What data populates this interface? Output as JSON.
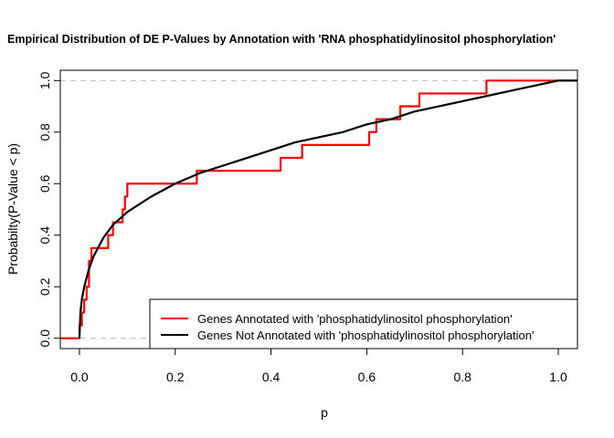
{
  "chart_data": {
    "type": "line",
    "title": "Empirical Distribution of DE P-Values by Annotation with 'RNA phosphatidylinositol phosphorylation'",
    "xlabel": "p",
    "ylabel": "Probabilty(P-Value < p)",
    "xlim": [
      -0.04,
      1.04
    ],
    "ylim": [
      -0.04,
      1.04
    ],
    "x_ticks": [
      "0.0",
      "0.2",
      "0.4",
      "0.6",
      "0.8",
      "1.0"
    ],
    "y_ticks": [
      "0.0",
      "0.2",
      "0.4",
      "0.6",
      "0.8",
      "1.0"
    ],
    "reference_lines": [
      0,
      1
    ],
    "legend_position": "bottom-right",
    "series": [
      {
        "name": "Genes Annotated with 'phosphatidylinositol phosphorylation'",
        "color": "#ff0000",
        "kind": "step",
        "x": [
          -0.04,
          0.0,
          0.005,
          0.01,
          0.015,
          0.02,
          0.025,
          0.06,
          0.07,
          0.09,
          0.095,
          0.1,
          0.245,
          0.42,
          0.465,
          0.605,
          0.62,
          0.67,
          0.69,
          0.71,
          0.85,
          1.04
        ],
        "y": [
          0.0,
          0.05,
          0.1,
          0.15,
          0.2,
          0.3,
          0.35,
          0.4,
          0.45,
          0.5,
          0.55,
          0.6,
          0.65,
          0.7,
          0.75,
          0.8,
          0.85,
          0.9,
          0.9,
          0.95,
          1.0,
          1.0
        ]
      },
      {
        "name": "Genes Not Annotated with 'phosphatidylinositol phosphorylation'",
        "color": "#000000",
        "kind": "curve",
        "x": [
          0.0,
          0.002,
          0.005,
          0.01,
          0.02,
          0.03,
          0.05,
          0.07,
          0.1,
          0.15,
          0.2,
          0.25,
          0.3,
          0.35,
          0.4,
          0.45,
          0.5,
          0.55,
          0.6,
          0.65,
          0.7,
          0.75,
          0.8,
          0.85,
          0.9,
          0.95,
          1.0,
          1.04
        ],
        "y": [
          0.0,
          0.1,
          0.15,
          0.2,
          0.27,
          0.32,
          0.39,
          0.44,
          0.49,
          0.55,
          0.6,
          0.64,
          0.67,
          0.7,
          0.73,
          0.76,
          0.78,
          0.8,
          0.83,
          0.85,
          0.88,
          0.9,
          0.92,
          0.94,
          0.96,
          0.98,
          1.0,
          1.0
        ]
      }
    ]
  }
}
